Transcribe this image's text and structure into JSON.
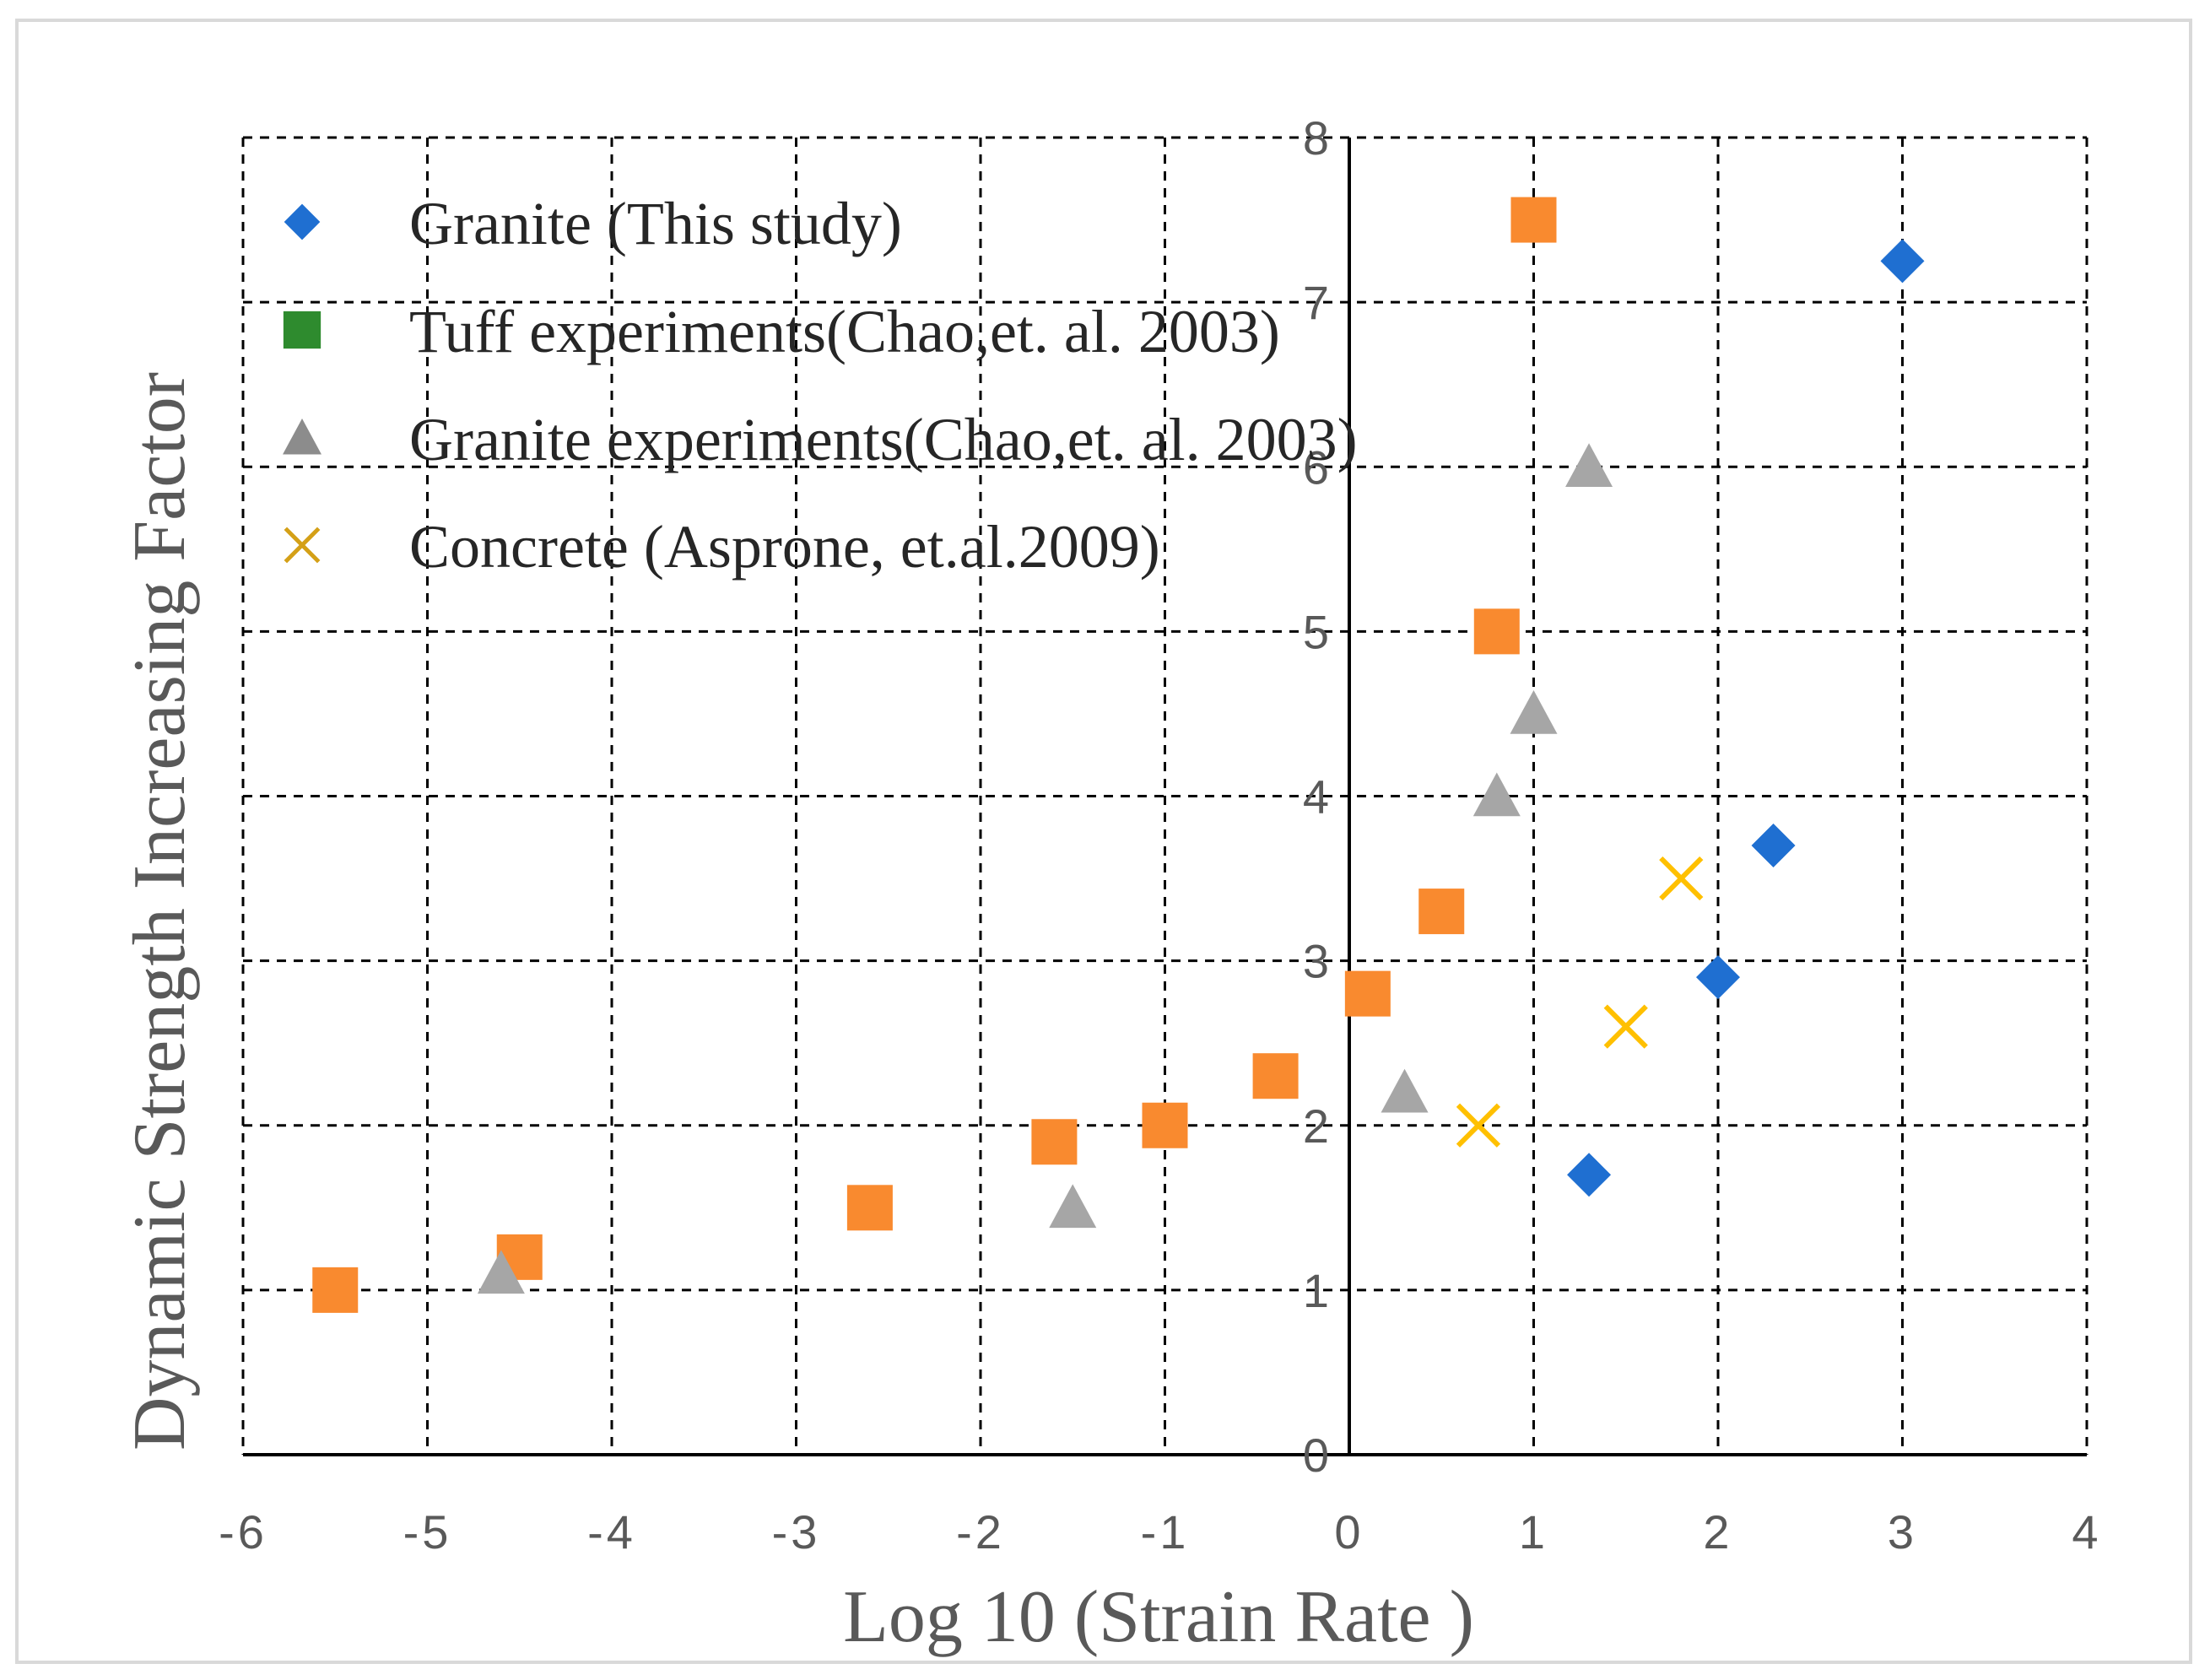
{
  "chart_data": {
    "type": "scatter",
    "title": "",
    "xlabel": "Log 10 (Strain Rate )",
    "ylabel": "Dynamic Strength Increasing Factor",
    "xlim": [
      -6,
      4
    ],
    "ylim": [
      0,
      8
    ],
    "x_ticks": [
      -6,
      -5,
      -4,
      -3,
      -2,
      -1,
      0,
      1,
      2,
      3,
      4
    ],
    "y_ticks": [
      0,
      1,
      2,
      3,
      4,
      5,
      6,
      7,
      8
    ],
    "grid": true,
    "legend_position": "top-left",
    "series": [
      {
        "name": "Granite (This study)",
        "marker": "diamond",
        "color": "#1f6fd1",
        "points": [
          [
            1.3,
            1.7
          ],
          [
            2.0,
            2.9
          ],
          [
            2.3,
            3.7
          ],
          [
            3.0,
            7.25
          ]
        ]
      },
      {
        "name": "Tuff experiments(Chao,et. al. 2003)",
        "marker": "square",
        "color": "#2e8b2e",
        "plot_color": "#f98a2f",
        "points": [
          [
            -5.5,
            1.0
          ],
          [
            -4.5,
            1.2
          ],
          [
            -2.6,
            1.5
          ],
          [
            -1.6,
            1.9
          ],
          [
            -1.0,
            2.0
          ],
          [
            -0.4,
            2.3
          ],
          [
            0.1,
            2.8
          ],
          [
            0.5,
            3.3
          ],
          [
            0.8,
            5.0
          ],
          [
            1.0,
            7.5
          ]
        ]
      },
      {
        "name": "Granite experiments(Chao,et. al. 2003)",
        "marker": "triangle",
        "color": "#8c8c8c",
        "plot_color": "#a6a6a6",
        "points": [
          [
            -4.6,
            1.1
          ],
          [
            -1.5,
            1.5
          ],
          [
            0.3,
            2.2
          ],
          [
            0.8,
            4.0
          ],
          [
            1.0,
            4.5
          ],
          [
            1.3,
            6.0
          ]
        ]
      },
      {
        "name": "Concrete (Asprone, et.al.2009)",
        "marker": "x",
        "color": "#d4a017",
        "plot_color": "#ffc000",
        "points": [
          [
            0.7,
            2.0
          ],
          [
            1.5,
            2.6
          ],
          [
            1.8,
            3.5
          ]
        ]
      }
    ]
  }
}
